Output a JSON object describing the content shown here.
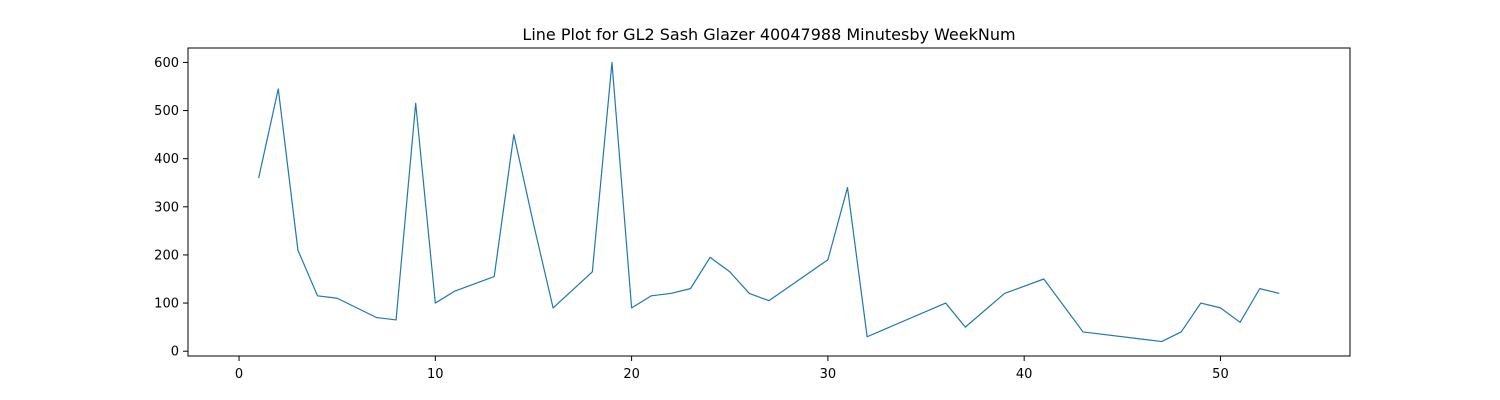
{
  "chart_data": {
    "type": "line",
    "title": "Line Plot for GL2 Sash Glazer 40047988 Minutesby WeekNum",
    "xlabel": "",
    "ylabel": "",
    "xlim": [
      -2.6,
      56.6
    ],
    "ylim": [
      -10,
      630
    ],
    "xticks": [
      0,
      10,
      20,
      30,
      40,
      50
    ],
    "yticks": [
      0,
      100,
      200,
      300,
      400,
      500,
      600
    ],
    "grid": false,
    "line_color": "#1f77b4",
    "series": [
      {
        "x": [
          1,
          2,
          3,
          4,
          5,
          7,
          8,
          9,
          10,
          11,
          13,
          14,
          15,
          16,
          18,
          19,
          20,
          21,
          22,
          23,
          24,
          25,
          26,
          27,
          30,
          31,
          32,
          36,
          37,
          39,
          41,
          43,
          47,
          48,
          49,
          50,
          51,
          52,
          53
        ],
        "y": [
          360,
          545,
          210,
          115,
          110,
          70,
          65,
          515,
          100,
          125,
          155,
          450,
          265,
          90,
          165,
          600,
          90,
          115,
          120,
          130,
          195,
          165,
          120,
          105,
          190,
          340,
          30,
          100,
          50,
          120,
          150,
          40,
          20,
          40,
          100,
          90,
          60,
          130,
          120
        ]
      }
    ]
  }
}
